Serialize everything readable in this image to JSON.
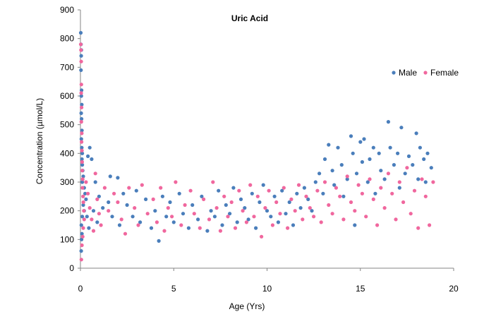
{
  "chart_data": {
    "type": "scatter",
    "title": "Uric Acid",
    "xlabel": "Age (Yrs)",
    "ylabel": "Concentration (µmol/L)",
    "xlim": [
      0,
      20
    ],
    "ylim": [
      0,
      900
    ],
    "x_ticks": [
      "0",
      "5",
      "10",
      "15",
      "20"
    ],
    "y_ticks": [
      "0",
      "100",
      "200",
      "300",
      "400",
      "500",
      "600",
      "700",
      "800",
      "900"
    ],
    "grid": false,
    "legend_position": "top-right",
    "series": [
      {
        "name": "Male",
        "color": "#4a7ebb",
        "points": [
          [
            0.02,
            820
          ],
          [
            0.03,
            780
          ],
          [
            0.05,
            760
          ],
          [
            0.04,
            740
          ],
          [
            0.03,
            690
          ],
          [
            0.06,
            620
          ],
          [
            0.05,
            600
          ],
          [
            0.07,
            570
          ],
          [
            0.04,
            540
          ],
          [
            0.06,
            520
          ],
          [
            0.08,
            480
          ],
          [
            0.05,
            450
          ],
          [
            0.07,
            420
          ],
          [
            0.1,
            400
          ],
          [
            0.08,
            380
          ],
          [
            0.1,
            360
          ],
          [
            0.12,
            340
          ],
          [
            0.15,
            320
          ],
          [
            0.1,
            300
          ],
          [
            0.2,
            280
          ],
          [
            0.25,
            260
          ],
          [
            0.3,
            240
          ],
          [
            0.15,
            220
          ],
          [
            0.2,
            200
          ],
          [
            0.1,
            180
          ],
          [
            0.05,
            150
          ],
          [
            0.08,
            120
          ],
          [
            0.06,
            100
          ],
          [
            0.04,
            60
          ],
          [
            0.4,
            390
          ],
          [
            0.5,
            420
          ],
          [
            0.6,
            380
          ],
          [
            0.8,
            300
          ],
          [
            1.0,
            250
          ],
          [
            0.35,
            180
          ],
          [
            0.45,
            140
          ],
          [
            0.7,
            200
          ],
          [
            0.9,
            160
          ],
          [
            1.2,
            210
          ],
          [
            1.5,
            230
          ],
          [
            1.6,
            320
          ],
          [
            1.7,
            180
          ],
          [
            2.0,
            315
          ],
          [
            2.1,
            150
          ],
          [
            2.3,
            260
          ],
          [
            2.5,
            220
          ],
          [
            2.8,
            180
          ],
          [
            3.0,
            270
          ],
          [
            3.2,
            160
          ],
          [
            3.5,
            240
          ],
          [
            3.8,
            140
          ],
          [
            4.0,
            200
          ],
          [
            4.2,
            95
          ],
          [
            4.4,
            250
          ],
          [
            4.6,
            180
          ],
          [
            4.8,
            230
          ],
          [
            5.0,
            160
          ],
          [
            5.3,
            260
          ],
          [
            5.5,
            190
          ],
          [
            5.8,
            140
          ],
          [
            6.0,
            220
          ],
          [
            6.3,
            170
          ],
          [
            6.5,
            250
          ],
          [
            6.8,
            130
          ],
          [
            7.0,
            200
          ],
          [
            7.2,
            180
          ],
          [
            7.4,
            270
          ],
          [
            7.6,
            150
          ],
          [
            7.8,
            220
          ],
          [
            8.0,
            190
          ],
          [
            8.2,
            280
          ],
          [
            8.4,
            160
          ],
          [
            8.6,
            240
          ],
          [
            8.8,
            210
          ],
          [
            9.0,
            170
          ],
          [
            9.2,
            260
          ],
          [
            9.4,
            140
          ],
          [
            9.6,
            230
          ],
          [
            9.8,
            290
          ],
          [
            10.0,
            200
          ],
          [
            10.2,
            180
          ],
          [
            10.4,
            250
          ],
          [
            10.6,
            160
          ],
          [
            10.8,
            270
          ],
          [
            11.0,
            190
          ],
          [
            11.2,
            230
          ],
          [
            11.4,
            150
          ],
          [
            11.6,
            260
          ],
          [
            11.8,
            210
          ],
          [
            12.0,
            280
          ],
          [
            12.2,
            240
          ],
          [
            12.4,
            200
          ],
          [
            12.6,
            300
          ],
          [
            12.8,
            330
          ],
          [
            13.0,
            260
          ],
          [
            13.1,
            380
          ],
          [
            13.3,
            430
          ],
          [
            13.5,
            340
          ],
          [
            13.6,
            290
          ],
          [
            13.8,
            420
          ],
          [
            14.0,
            360
          ],
          [
            14.1,
            250
          ],
          [
            14.3,
            310
          ],
          [
            14.5,
            460
          ],
          [
            14.6,
            400
          ],
          [
            14.7,
            150
          ],
          [
            14.8,
            330
          ],
          [
            15.0,
            440
          ],
          [
            15.1,
            370
          ],
          [
            15.2,
            450
          ],
          [
            15.4,
            300
          ],
          [
            15.5,
            380
          ],
          [
            15.7,
            420
          ],
          [
            15.8,
            260
          ],
          [
            16.0,
            400
          ],
          [
            16.1,
            340
          ],
          [
            16.3,
            310
          ],
          [
            16.5,
            510
          ],
          [
            16.6,
            420
          ],
          [
            16.8,
            360
          ],
          [
            17.0,
            400
          ],
          [
            17.1,
            280
          ],
          [
            17.2,
            490
          ],
          [
            17.4,
            330
          ],
          [
            17.6,
            390
          ],
          [
            17.8,
            360
          ],
          [
            18.0,
            470
          ],
          [
            18.1,
            310
          ],
          [
            18.2,
            420
          ],
          [
            18.4,
            380
          ],
          [
            18.5,
            300
          ],
          [
            18.6,
            400
          ],
          [
            18.8,
            350
          ]
        ]
      },
      {
        "name": "Female",
        "color": "#f0679e",
        "points": [
          [
            0.02,
            780
          ],
          [
            0.03,
            760
          ],
          [
            0.04,
            720
          ],
          [
            0.05,
            640
          ],
          [
            0.04,
            610
          ],
          [
            0.06,
            560
          ],
          [
            0.05,
            510
          ],
          [
            0.07,
            470
          ],
          [
            0.06,
            440
          ],
          [
            0.08,
            410
          ],
          [
            0.09,
            370
          ],
          [
            0.1,
            340
          ],
          [
            0.12,
            310
          ],
          [
            0.11,
            280
          ],
          [
            0.14,
            250
          ],
          [
            0.16,
            230
          ],
          [
            0.18,
            200
          ],
          [
            0.2,
            170
          ],
          [
            0.15,
            140
          ],
          [
            0.12,
            110
          ],
          [
            0.08,
            80
          ],
          [
            0.05,
            30
          ],
          [
            0.3,
            300
          ],
          [
            0.4,
            260
          ],
          [
            0.5,
            210
          ],
          [
            0.6,
            170
          ],
          [
            0.7,
            130
          ],
          [
            0.8,
            330
          ],
          [
            0.9,
            240
          ],
          [
            1.0,
            190
          ],
          [
            1.1,
            150
          ],
          [
            1.3,
            280
          ],
          [
            1.5,
            200
          ],
          [
            1.8,
            260
          ],
          [
            2.0,
            230
          ],
          [
            2.2,
            170
          ],
          [
            2.4,
            120
          ],
          [
            2.6,
            280
          ],
          [
            2.9,
            210
          ],
          [
            3.1,
            150
          ],
          [
            3.3,
            290
          ],
          [
            3.6,
            190
          ],
          [
            3.9,
            240
          ],
          [
            4.1,
            160
          ],
          [
            4.3,
            280
          ],
          [
            4.5,
            130
          ],
          [
            4.7,
            210
          ],
          [
            4.9,
            180
          ],
          [
            5.1,
            300
          ],
          [
            5.4,
            150
          ],
          [
            5.6,
            220
          ],
          [
            5.9,
            270
          ],
          [
            6.1,
            190
          ],
          [
            6.4,
            140
          ],
          [
            6.6,
            240
          ],
          [
            6.9,
            170
          ],
          [
            7.1,
            300
          ],
          [
            7.3,
            210
          ],
          [
            7.5,
            130
          ],
          [
            7.7,
            250
          ],
          [
            7.9,
            180
          ],
          [
            8.1,
            230
          ],
          [
            8.3,
            140
          ],
          [
            8.5,
            270
          ],
          [
            8.7,
            200
          ],
          [
            8.9,
            160
          ],
          [
            9.1,
            290
          ],
          [
            9.3,
            180
          ],
          [
            9.5,
            250
          ],
          [
            9.7,
            110
          ],
          [
            9.9,
            210
          ],
          [
            10.1,
            270
          ],
          [
            10.3,
            150
          ],
          [
            10.5,
            230
          ],
          [
            10.7,
            190
          ],
          [
            10.9,
            280
          ],
          [
            11.1,
            140
          ],
          [
            11.3,
            240
          ],
          [
            11.5,
            200
          ],
          [
            11.7,
            290
          ],
          [
            11.9,
            170
          ],
          [
            12.1,
            250
          ],
          [
            12.3,
            210
          ],
          [
            12.5,
            180
          ],
          [
            12.7,
            270
          ],
          [
            12.9,
            160
          ],
          [
            13.1,
            300
          ],
          [
            13.3,
            220
          ],
          [
            13.5,
            190
          ],
          [
            13.7,
            280
          ],
          [
            13.9,
            250
          ],
          [
            14.1,
            170
          ],
          [
            14.3,
            320
          ],
          [
            14.5,
            230
          ],
          [
            14.7,
            200
          ],
          [
            14.9,
            290
          ],
          [
            15.1,
            260
          ],
          [
            15.3,
            180
          ],
          [
            15.5,
            310
          ],
          [
            15.7,
            240
          ],
          [
            15.9,
            150
          ],
          [
            16.1,
            280
          ],
          [
            16.3,
            210
          ],
          [
            16.5,
            330
          ],
          [
            16.7,
            260
          ],
          [
            16.9,
            170
          ],
          [
            17.1,
            300
          ],
          [
            17.3,
            230
          ],
          [
            17.5,
            350
          ],
          [
            17.7,
            190
          ],
          [
            17.9,
            270
          ],
          [
            18.1,
            140
          ],
          [
            18.3,
            310
          ],
          [
            18.5,
            250
          ],
          [
            18.7,
            150
          ],
          [
            18.9,
            300
          ]
        ]
      }
    ]
  }
}
